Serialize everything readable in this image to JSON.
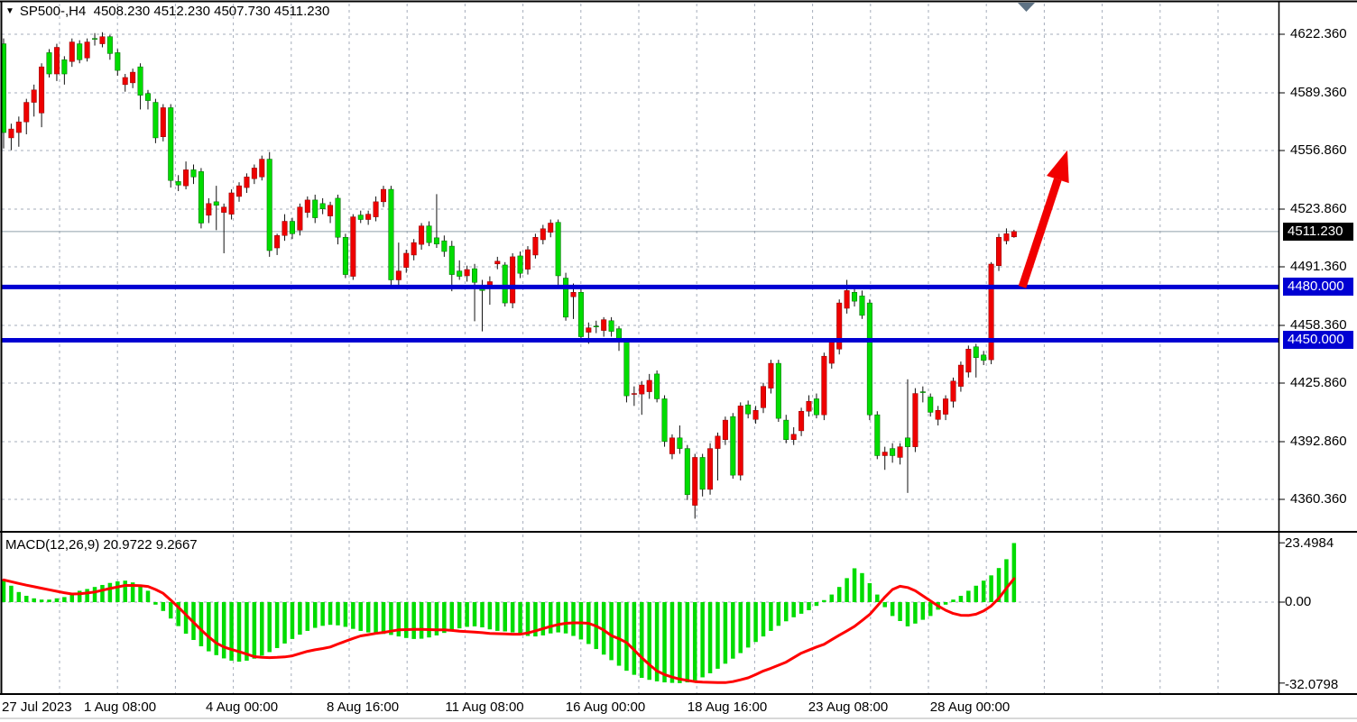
{
  "header": {
    "symbol_period": "SP500-,H4",
    "open": "4508.230",
    "high": "4512.230",
    "low": "4507.730",
    "close": "4511.230"
  },
  "price_axis": {
    "labels": [
      {
        "text": "4622.360",
        "price": 4622.36
      },
      {
        "text": "4589.360",
        "price": 4589.36
      },
      {
        "text": "4556.860",
        "price": 4556.86
      },
      {
        "text": "4523.860",
        "price": 4523.86
      },
      {
        "text": "4491.360",
        "price": 4491.36
      },
      {
        "text": "4458.360",
        "price": 4458.36
      },
      {
        "text": "4425.860",
        "price": 4425.86
      },
      {
        "text": "4392.860",
        "price": 4392.86
      },
      {
        "text": "4360.360",
        "price": 4360.36
      }
    ],
    "current": {
      "text": "4511.230",
      "price": 4511.23
    },
    "levels": [
      {
        "text": "4480.000",
        "price": 4480.0
      },
      {
        "text": "4450.000",
        "price": 4450.0
      }
    ]
  },
  "time_axis": {
    "labels": [
      {
        "text": "27 Jul 2023",
        "x": 2,
        "align": "left"
      },
      {
        "text": "1 Aug 08:00",
        "x": 133,
        "align": "center"
      },
      {
        "text": "4 Aug 00:00",
        "x": 268,
        "align": "center"
      },
      {
        "text": "8 Aug 16:00",
        "x": 402,
        "align": "center"
      },
      {
        "text": "11 Aug 08:00",
        "x": 537,
        "align": "center"
      },
      {
        "text": "16 Aug 00:00",
        "x": 671,
        "align": "center"
      },
      {
        "text": "18 Aug 16:00",
        "x": 806,
        "align": "center"
      },
      {
        "text": "23 Aug 08:00",
        "x": 940,
        "align": "center"
      },
      {
        "text": "28 Aug 00:00",
        "x": 1075,
        "align": "center"
      }
    ]
  },
  "macd": {
    "label": "MACD(12,26,9) 20.9722 9.2667",
    "axis": {
      "max": "23.4984",
      "zero": "0.00",
      "min": "-32.0798"
    }
  },
  "colors": {
    "grid": "#a6adbb",
    "bull": "#ee0000",
    "bear": "#00dc00",
    "wick": "#111111",
    "level_line": "#0000d2",
    "price_line": "#8fa0aa",
    "macd_hist": "#00dc00",
    "macd_signal": "#ff0000",
    "arrow": "#f10000",
    "border": "#000000",
    "shift_marker": "#5e7284",
    "label_bg_current": "#000000",
    "label_bg_level": "#0000d2"
  },
  "chart_data": {
    "type": "candlestick+macd",
    "title": "SP500-,H4",
    "symbol": "SP500-",
    "timeframe": "H4",
    "price_panel": {
      "ylim": [
        4340,
        4635
      ],
      "gridline_prices": [
        4622.36,
        4589.36,
        4556.86,
        4523.86,
        4491.36,
        4458.36,
        4425.86,
        4392.86,
        4360.36
      ],
      "support_resistance": [
        4480.0,
        4450.0
      ],
      "current_price": 4511.23,
      "trend_arrow": {
        "from_x": 1133,
        "from_price": 4480,
        "to_x": 1183,
        "to_price": 4557
      },
      "note": "candles are [open,high,low,close]; this template colors close>open red (bull) and close<open lime (bear) as in the source image",
      "candles": [
        [
          4617,
          4620,
          4558,
          4567
        ],
        [
          4564,
          4572,
          4557,
          4569
        ],
        [
          4567,
          4576,
          4559,
          4573
        ],
        [
          4573,
          4586,
          4566,
          4584
        ],
        [
          4584,
          4594,
          4576,
          4591
        ],
        [
          4578,
          4606,
          4570,
          4604
        ],
        [
          4612,
          4614,
          4598,
          4600
        ],
        [
          4600,
          4617,
          4596,
          4615
        ],
        [
          4608,
          4610,
          4594,
          4600
        ],
        [
          4607,
          4620,
          4604,
          4618
        ],
        [
          4617,
          4619,
          4606,
          4608
        ],
        [
          4609,
          4620,
          4607,
          4618
        ],
        [
          4620,
          4623,
          4616,
          4619.5
        ],
        [
          4617,
          4623.5,
          4615,
          4621
        ],
        [
          4621,
          4622,
          4608,
          4611.5
        ],
        [
          4612,
          4614,
          4599,
          4602
        ],
        [
          4594,
          4600,
          4590,
          4598
        ],
        [
          4595,
          4603,
          4592,
          4601
        ],
        [
          4604,
          4606,
          4580,
          4588
        ],
        [
          4589,
          4591,
          4580,
          4585
        ],
        [
          4584,
          4586,
          4561,
          4564
        ],
        [
          4564.6,
          4583,
          4562,
          4581
        ],
        [
          4581,
          4583,
          4536,
          4540
        ],
        [
          4539.4,
          4543,
          4534,
          4537.4
        ],
        [
          4537,
          4550.7,
          4535,
          4546
        ],
        [
          4546,
          4549,
          4538,
          4542
        ],
        [
          4545,
          4547,
          4513,
          4516
        ],
        [
          4520.4,
          4530,
          4516,
          4527
        ],
        [
          4528,
          4537,
          4512,
          4526
        ],
        [
          4522,
          4527,
          4499,
          4525
        ],
        [
          4521,
          4535,
          4518,
          4533
        ],
        [
          4531,
          4539,
          4528,
          4537
        ],
        [
          4536,
          4544,
          4533,
          4542
        ],
        [
          4541,
          4549,
          4538,
          4547
        ],
        [
          4542,
          4554,
          4540,
          4552
        ],
        [
          4552,
          4556,
          4497,
          4500.5
        ],
        [
          4502,
          4510,
          4498,
          4509
        ],
        [
          4509,
          4521,
          4506,
          4517
        ],
        [
          4517,
          4519,
          4507,
          4510
        ],
        [
          4512,
          4527,
          4509,
          4525
        ],
        [
          4522,
          4531,
          4519,
          4529
        ],
        [
          4529,
          4532,
          4516,
          4519
        ],
        [
          4527,
          4530,
          4521,
          4524
        ],
        [
          4520,
          4528,
          4516,
          4526
        ],
        [
          4530,
          4532,
          4504,
          4508
        ],
        [
          4508,
          4510,
          4485,
          4487
        ],
        [
          4486,
          4521,
          4484,
          4519.5
        ],
        [
          4520.5,
          4523,
          4516,
          4518
        ],
        [
          4518,
          4523,
          4515,
          4521
        ],
        [
          4519.5,
          4531,
          4517,
          4528
        ],
        [
          4528,
          4537,
          4525,
          4535
        ],
        [
          4535,
          4537,
          4480,
          4484
        ],
        [
          4484,
          4505,
          4481,
          4489
        ],
        [
          4491,
          4501,
          4488,
          4499
        ],
        [
          4498,
          4507,
          4495,
          4505
        ],
        [
          4504,
          4516,
          4501,
          4514.4
        ],
        [
          4514.4,
          4517,
          4503,
          4505
        ],
        [
          4507.7,
          4532.3,
          4502,
          4504.2
        ],
        [
          4506,
          4509,
          4497,
          4500
        ],
        [
          4503,
          4506,
          4477.6,
          4487
        ],
        [
          4489,
          4495,
          4484,
          4486
        ],
        [
          4486.3,
          4492,
          4483,
          4489.8
        ],
        [
          4490.3,
          4493,
          4460.7,
          4482.6
        ],
        [
          4481,
          4484,
          4455,
          4478
        ],
        [
          4480,
          4486,
          4470,
          4483
        ],
        [
          4493,
          4497,
          4490,
          4494.5
        ],
        [
          4492.4,
          4494,
          4469,
          4471
        ],
        [
          4471,
          4499,
          4468,
          4497
        ],
        [
          4497.5,
          4500,
          4485,
          4487.7
        ],
        [
          4490,
          4503,
          4487,
          4501
        ],
        [
          4498,
          4510,
          4496,
          4508
        ],
        [
          4506.6,
          4515,
          4504,
          4512.8
        ],
        [
          4510.8,
          4518,
          4508,
          4516
        ],
        [
          4516.4,
          4518,
          4481,
          4486.3
        ],
        [
          4485,
          4488,
          4461,
          4463
        ],
        [
          4474.5,
          4482,
          4462,
          4477
        ],
        [
          4477,
          4479,
          4450,
          4452
        ],
        [
          4454.5,
          4460,
          4448,
          4457
        ],
        [
          4458,
          4461,
          4454,
          4457.5
        ],
        [
          4455.5,
          4463,
          4452,
          4461.6
        ],
        [
          4461,
          4463,
          4452,
          4455
        ],
        [
          4456.5,
          4458,
          4444,
          4448.9
        ],
        [
          4449.4,
          4451,
          4415,
          4418.7
        ],
        [
          4419.5,
          4424,
          4413,
          4420
        ],
        [
          4419.7,
          4427,
          4408,
          4424.8
        ],
        [
          4421,
          4431,
          4417,
          4427.4
        ],
        [
          4431,
          4433,
          4415,
          4417
        ],
        [
          4417,
          4419,
          4390,
          4393
        ],
        [
          4386,
          4397,
          4383,
          4395
        ],
        [
          4395,
          4402,
          4386,
          4389
        ],
        [
          4389,
          4391,
          4360,
          4363
        ],
        [
          4357,
          4386,
          4349.5,
          4384
        ],
        [
          4384,
          4386,
          4362,
          4366
        ],
        [
          4366,
          4392,
          4363,
          4389
        ],
        [
          4389,
          4398,
          4371,
          4396
        ],
        [
          4394,
          4407,
          4391,
          4405
        ],
        [
          4407,
          4409,
          4372,
          4374
        ],
        [
          4374,
          4415,
          4371,
          4413
        ],
        [
          4413.6,
          4416,
          4406,
          4408.5
        ],
        [
          4405.4,
          4413,
          4403,
          4410.5
        ],
        [
          4412,
          4426,
          4409,
          4424
        ],
        [
          4423,
          4439,
          4420,
          4437
        ],
        [
          4437,
          4439,
          4404,
          4406
        ],
        [
          4405,
          4408,
          4392,
          4394
        ],
        [
          4394,
          4401,
          4391,
          4397
        ],
        [
          4399,
          4412,
          4396,
          4410
        ],
        [
          4410,
          4419,
          4407,
          4415.6
        ],
        [
          4417,
          4420,
          4406,
          4408
        ],
        [
          4408,
          4443,
          4405,
          4441
        ],
        [
          4437,
          4451,
          4434,
          4449
        ],
        [
          4445,
          4473,
          4442,
          4471
        ],
        [
          4468,
          4484,
          4465,
          4478
        ],
        [
          4477,
          4481,
          4469,
          4472
        ],
        [
          4475,
          4478,
          4462,
          4464
        ],
        [
          4471,
          4473,
          4405,
          4408
        ],
        [
          4408,
          4410,
          4383,
          4385
        ],
        [
          4385,
          4390,
          4377,
          4387
        ],
        [
          4389,
          4392,
          4381,
          4385
        ],
        [
          4384,
          4392,
          4380,
          4390
        ],
        [
          4395,
          4428,
          4364,
          4390
        ],
        [
          4390,
          4423,
          4387,
          4420
        ],
        [
          4421,
          4424,
          4415,
          4420.5
        ],
        [
          4418,
          4420,
          4407,
          4409.4
        ],
        [
          4405.4,
          4413,
          4402,
          4410.5
        ],
        [
          4408.3,
          4419,
          4405,
          4417
        ],
        [
          4415.6,
          4429,
          4412,
          4427
        ],
        [
          4424,
          4438,
          4421,
          4436
        ],
        [
          4432,
          4447,
          4429,
          4445
        ],
        [
          4446.3,
          4448,
          4429,
          4440.2
        ],
        [
          4441.7,
          4444,
          4436,
          4438.6
        ],
        [
          4439,
          4494,
          4436.5,
          4492.9
        ],
        [
          4492,
          4510,
          4489,
          4508
        ],
        [
          4506,
          4513,
          4504,
          4510
        ],
        [
          4508.23,
          4512.23,
          4507.73,
          4511.23
        ]
      ]
    },
    "macd_panel": {
      "params": [
        12,
        26,
        9
      ],
      "current_macd": 20.9722,
      "current_signal": 9.2667,
      "ylim": [
        -32.0798,
        23.4984
      ],
      "histogram": [
        8.9,
        6.5,
        4,
        2.5,
        1.5,
        1,
        1,
        1.5,
        2,
        3,
        4.5,
        5.2,
        6,
        6.8,
        7.6,
        8.2,
        8.5,
        7.8,
        6.5,
        4.5,
        -1,
        -3.5,
        -6.5,
        -9.5,
        -12.5,
        -15,
        -17.5,
        -19.5,
        -21,
        -22.3,
        -23.2,
        -23.6,
        -23.2,
        -22.4,
        -21.2,
        -19.8,
        -18.2,
        -16.4,
        -14.6,
        -12.9,
        -11.4,
        -10.2,
        -9.4,
        -9,
        -9.2,
        -9.8,
        -10.6,
        -11.4,
        -12,
        -12.4,
        -12.6,
        -13,
        -13.6,
        -14.2,
        -14.6,
        -14.5,
        -14,
        -13.2,
        -12.2,
        -11.2,
        -10.4,
        -9.8,
        -9.6,
        -10,
        -10.8,
        -11.4,
        -11.6,
        -12,
        -12.8,
        -13.4,
        -13.6,
        -13.2,
        -12.4,
        -12,
        -12.4,
        -13.4,
        -14.8,
        -16.6,
        -18.6,
        -20.8,
        -23,
        -25.2,
        -27.2,
        -28.8,
        -30,
        -30.8,
        -31.4,
        -31.8,
        -32,
        -32.1,
        -31.8,
        -31,
        -29.8,
        -28.2,
        -26.4,
        -24.4,
        -22.4,
        -20.2,
        -18,
        -15.8,
        -13.6,
        -11.4,
        -9.4,
        -7.6,
        -6,
        -4.6,
        -3.2,
        -1.5,
        0.8,
        3,
        6,
        9.5,
        13.4,
        11.5,
        7.5,
        3,
        -2,
        -5.5,
        -7.5,
        -9.6,
        -8.5,
        -7,
        -5.5,
        -3,
        -1,
        1,
        2.5,
        4.5,
        6.5,
        8.5,
        10.6,
        13.5,
        17,
        23.4
      ],
      "signal": [
        8.8,
        8.1,
        7.4,
        6.7,
        6.1,
        5.5,
        4.9,
        4.3,
        3.7,
        3.2,
        3.3,
        3.6,
        4.0,
        4.7,
        5.4,
        6.0,
        6.6,
        6.6,
        6.5,
        6.2,
        5.0,
        3.5,
        0.8,
        -2.0,
        -5.0,
        -8.0,
        -11.0,
        -13.8,
        -16.2,
        -17.8,
        -18.8,
        -19.6,
        -20.6,
        -21.6,
        -21.9,
        -22.0,
        -21.9,
        -21.7,
        -21.3,
        -20.4,
        -19.5,
        -18.9,
        -18.4,
        -17.8,
        -16.6,
        -15.5,
        -14.4,
        -13.4,
        -12.9,
        -12.4,
        -12.0,
        -11.5,
        -11.0,
        -10.9,
        -10.8,
        -10.8,
        -10.9,
        -11.0,
        -11.0,
        -11.2,
        -11.5,
        -11.7,
        -11.9,
        -12.1,
        -12.4,
        -12.5,
        -12.6,
        -12.7,
        -12.7,
        -12.2,
        -11.4,
        -10.5,
        -9.6,
        -8.9,
        -8.4,
        -8.2,
        -8.2,
        -8.4,
        -9.5,
        -11.1,
        -13.3,
        -14.5,
        -16.0,
        -19.0,
        -22.0,
        -24.8,
        -27.3,
        -28.7,
        -29.7,
        -30.5,
        -31.0,
        -31.5,
        -31.7,
        -31.8,
        -31.9,
        -31.9,
        -31.5,
        -30.8,
        -30.0,
        -28.7,
        -27.3,
        -26.2,
        -25.0,
        -23.8,
        -22.0,
        -20.2,
        -19.0,
        -17.8,
        -16.7,
        -14.9,
        -13.1,
        -11.4,
        -9.6,
        -7.3,
        -4.9,
        -1.5,
        2.0,
        5.0,
        6.3,
        5.8,
        4.5,
        2.5,
        0.5,
        -1.5,
        -3.2,
        -4.5,
        -5.2,
        -5.3,
        -4.8,
        -3.5,
        -1.5,
        1.5,
        5.5,
        9.27
      ]
    }
  }
}
